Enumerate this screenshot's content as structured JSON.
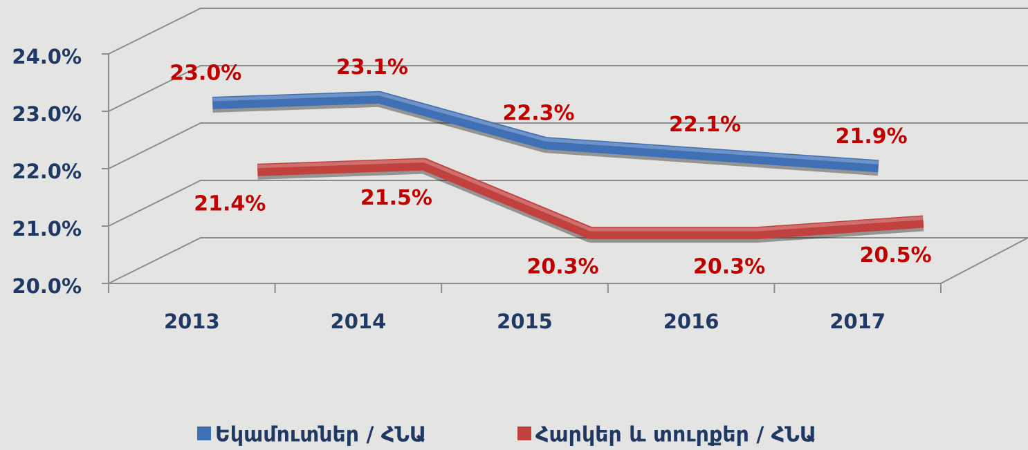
{
  "chart_data": {
    "type": "line",
    "categories": [
      "2013",
      "2014",
      "2015",
      "2016",
      "2017"
    ],
    "series": [
      {
        "name": "Եկամուտներ / ՀՆԱ",
        "color": "#3f6fb5",
        "values": [
          23.0,
          23.1,
          22.3,
          22.1,
          21.9
        ],
        "value_labels": [
          "23.0%",
          "23.1%",
          "22.3%",
          "22.1%",
          "21.9%"
        ]
      },
      {
        "name": "Հարկեր և տուրքեր / ՀՆԱ",
        "color": "#c0413e",
        "values": [
          21.4,
          21.5,
          20.3,
          20.3,
          20.5
        ],
        "value_labels": [
          "21.4%",
          "21.5%",
          "20.3%",
          "20.3%",
          "20.5%"
        ]
      }
    ],
    "ylim": [
      20,
      24
    ],
    "yticks": [
      {
        "value": 20,
        "label": "20.0%"
      },
      {
        "value": 21,
        "label": "21.0%"
      },
      {
        "value": 22,
        "label": "22.0%"
      },
      {
        "value": 23,
        "label": "23.0%"
      },
      {
        "value": 24,
        "label": "24.0%"
      }
    ],
    "grid": true,
    "legend": "bottom"
  }
}
